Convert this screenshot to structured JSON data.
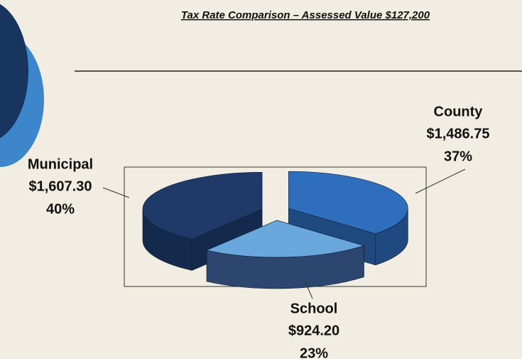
{
  "chart_data": {
    "type": "pie",
    "title": "Tax Rate Comparison – Assessed Value $127,200",
    "categories": [
      "County",
      "School",
      "Municipal"
    ],
    "values": [
      1486.75,
      924.2,
      1607.3
    ],
    "value_labels": [
      "$1,486.75",
      "$924.20",
      "$1,607.30"
    ],
    "percents": [
      37,
      23,
      40
    ],
    "percent_labels": [
      "37%",
      "23%",
      "40%"
    ],
    "colors": [
      "#2f6dbd",
      "#6aa7dd",
      "#1f3a69"
    ],
    "side_colors": [
      "#1e4a80",
      "#2c4670",
      "#142a4c"
    ]
  }
}
